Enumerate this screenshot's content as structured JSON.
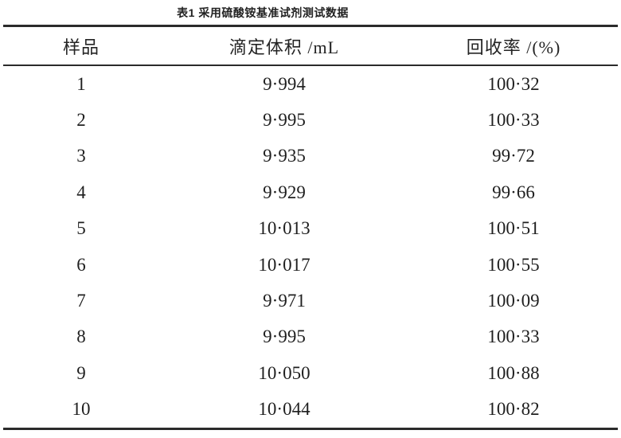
{
  "chart_data": {
    "type": "table",
    "title": "表1 采用硫酸铵基准试剂测试数据",
    "columns": [
      "样品",
      "滴定体积 /mL",
      "回收率 /(%)"
    ],
    "rows": [
      [
        "1",
        "9·994",
        "100·32"
      ],
      [
        "2",
        "9·995",
        "100·33"
      ],
      [
        "3",
        "9·935",
        "99·72"
      ],
      [
        "4",
        "9·929",
        "99·66"
      ],
      [
        "5",
        "10·013",
        "100·51"
      ],
      [
        "6",
        "10·017",
        "100·55"
      ],
      [
        "7",
        "9·971",
        "100·09"
      ],
      [
        "8",
        "9·995",
        "100·33"
      ],
      [
        "9",
        "10·050",
        "100·88"
      ],
      [
        "10",
        "10·044",
        "100·82"
      ]
    ]
  }
}
